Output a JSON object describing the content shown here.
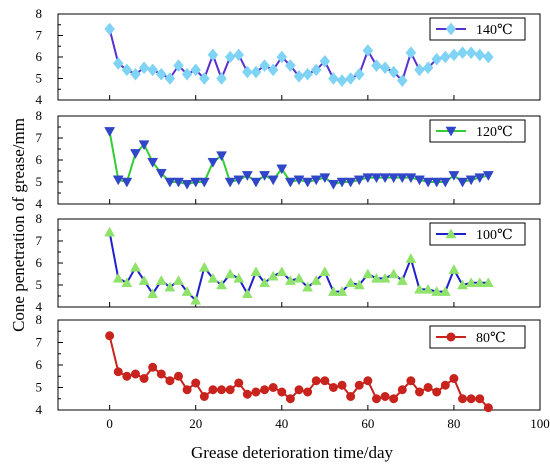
{
  "chart_data": {
    "type": "line",
    "xlabel": "Grease deterioration time/day",
    "ylabel": "Cone penetration of grease/mm",
    "xlim": [
      -12,
      100
    ],
    "xticks": [
      0,
      20,
      40,
      60,
      80,
      100
    ],
    "grid": false,
    "legend_position": "top-right",
    "panels": [
      {
        "name": "140℃",
        "line_color": "#5a2fd0",
        "marker_color": "#7fd3f5",
        "marker": "diamond",
        "ylim": [
          4,
          8
        ],
        "yticks": [
          4,
          5,
          6,
          7,
          8
        ],
        "x": [
          0,
          2,
          4,
          6,
          8,
          10,
          12,
          14,
          16,
          18,
          20,
          22,
          24,
          26,
          28,
          30,
          32,
          34,
          36,
          38,
          40,
          42,
          44,
          46,
          48,
          50,
          52,
          54,
          56,
          58,
          60,
          62,
          64,
          66,
          68,
          70,
          72,
          74,
          76,
          78,
          80,
          82,
          84,
          86,
          88
        ],
        "values": [
          7.3,
          5.7,
          5.4,
          5.2,
          5.5,
          5.4,
          5.2,
          5.0,
          5.6,
          5.2,
          5.4,
          5.0,
          6.1,
          5.0,
          6.0,
          6.1,
          5.3,
          5.3,
          5.6,
          5.4,
          6.0,
          5.6,
          5.1,
          5.2,
          5.4,
          5.8,
          5.0,
          4.9,
          5.0,
          5.2,
          6.3,
          5.6,
          5.5,
          5.3,
          4.9,
          6.2,
          5.4,
          5.5,
          5.9,
          6.0,
          6.1,
          6.2,
          6.2,
          6.1,
          6.0
        ]
      },
      {
        "name": "120℃",
        "line_color": "#33cc33",
        "marker_color": "#2f46c8",
        "marker": "triangle-down",
        "ylim": [
          4,
          8
        ],
        "yticks": [
          4,
          5,
          6,
          7,
          8
        ],
        "x": [
          0,
          2,
          4,
          6,
          8,
          10,
          12,
          14,
          16,
          18,
          20,
          22,
          24,
          26,
          28,
          30,
          32,
          34,
          36,
          38,
          40,
          42,
          44,
          46,
          48,
          50,
          52,
          54,
          56,
          58,
          60,
          62,
          64,
          66,
          68,
          70,
          72,
          74,
          76,
          78,
          80,
          82,
          84,
          86,
          88
        ],
        "values": [
          7.3,
          5.1,
          5.0,
          6.3,
          6.7,
          5.9,
          5.4,
          5.0,
          5.0,
          4.9,
          5.0,
          5.0,
          5.9,
          6.2,
          5.0,
          5.1,
          5.3,
          5.0,
          5.3,
          5.1,
          5.6,
          5.0,
          5.1,
          5.0,
          5.1,
          5.2,
          4.9,
          5.0,
          5.0,
          5.1,
          5.2,
          5.2,
          5.2,
          5.2,
          5.2,
          5.2,
          5.1,
          5.0,
          5.0,
          5.0,
          5.3,
          5.0,
          5.1,
          5.2,
          5.3
        ]
      },
      {
        "name": "100℃",
        "line_color": "#1f1fcc",
        "marker_color": "#8fe36b",
        "marker": "triangle-up",
        "ylim": [
          4,
          8
        ],
        "yticks": [
          4,
          5,
          6,
          7,
          8
        ],
        "x": [
          0,
          2,
          4,
          6,
          8,
          10,
          12,
          14,
          16,
          18,
          20,
          22,
          24,
          26,
          28,
          30,
          32,
          34,
          36,
          38,
          40,
          42,
          44,
          46,
          48,
          50,
          52,
          54,
          56,
          58,
          60,
          62,
          64,
          66,
          68,
          70,
          72,
          74,
          76,
          78,
          80,
          82,
          84,
          86,
          88
        ],
        "values": [
          7.4,
          5.3,
          5.1,
          5.8,
          5.2,
          4.6,
          5.2,
          4.9,
          5.2,
          4.7,
          4.3,
          5.8,
          5.3,
          5.0,
          5.5,
          5.3,
          4.6,
          5.6,
          5.1,
          5.4,
          5.6,
          5.2,
          5.3,
          4.9,
          5.2,
          5.6,
          4.7,
          4.7,
          5.1,
          5.0,
          5.5,
          5.3,
          5.3,
          5.5,
          5.2,
          6.2,
          4.8,
          4.8,
          4.7,
          4.7,
          5.7,
          5.0,
          5.1,
          5.1,
          5.1
        ]
      },
      {
        "name": "80℃",
        "line_color": "#c8231c",
        "marker_color": "#c8231c",
        "marker": "circle",
        "ylim": [
          4,
          8
        ],
        "yticks": [
          4,
          5,
          6,
          7,
          8
        ],
        "x": [
          0,
          2,
          4,
          6,
          8,
          10,
          12,
          14,
          16,
          18,
          20,
          22,
          24,
          26,
          28,
          30,
          32,
          34,
          36,
          38,
          40,
          42,
          44,
          46,
          48,
          50,
          52,
          54,
          56,
          58,
          60,
          62,
          64,
          66,
          68,
          70,
          72,
          74,
          76,
          78,
          80,
          82,
          84,
          86,
          88
        ],
        "values": [
          7.3,
          5.7,
          5.5,
          5.6,
          5.4,
          5.9,
          5.6,
          5.3,
          5.5,
          4.9,
          5.2,
          4.6,
          4.9,
          4.9,
          4.9,
          5.2,
          4.7,
          4.8,
          4.9,
          5.0,
          4.8,
          4.5,
          4.9,
          4.8,
          5.3,
          5.3,
          5.0,
          5.1,
          4.6,
          5.1,
          5.3,
          4.5,
          4.6,
          4.5,
          4.9,
          5.3,
          4.8,
          5.0,
          4.8,
          5.1,
          5.4,
          4.5,
          4.5,
          4.5,
          4.1
        ]
      }
    ]
  }
}
